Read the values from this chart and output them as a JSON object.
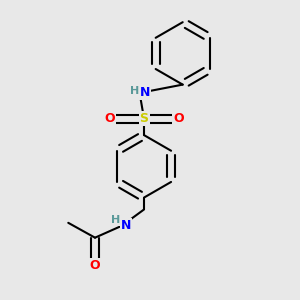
{
  "bg_color": "#e8e8e8",
  "atom_colors": {
    "C": "#000000",
    "H": "#5a9999",
    "N": "#0000ff",
    "O": "#ff0000",
    "S": "#cccc00"
  },
  "bond_color": "#000000",
  "bond_width": 1.5,
  "figsize": [
    3.0,
    3.0
  ],
  "dpi": 100,
  "xlim": [
    0,
    10
  ],
  "ylim": [
    0,
    10
  ]
}
